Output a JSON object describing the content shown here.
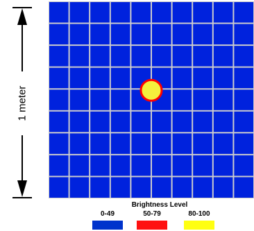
{
  "dimension": {
    "label": "1 meter"
  },
  "grid": {
    "rows": 9,
    "cols": 10,
    "cell_color": "#0022dd",
    "line_color": "#cccccc"
  },
  "spot": {
    "row": 4,
    "col": 5,
    "fill_color": "#f5f03c",
    "ring_color": "#ff0000",
    "level": "80-100"
  },
  "legend": {
    "title": "Brightness Level",
    "items": [
      {
        "range": "0-49",
        "color": "#0033cc"
      },
      {
        "range": "50-79",
        "color": "#ff1111"
      },
      {
        "range": "80-100",
        "color": "#ffff11"
      }
    ]
  }
}
